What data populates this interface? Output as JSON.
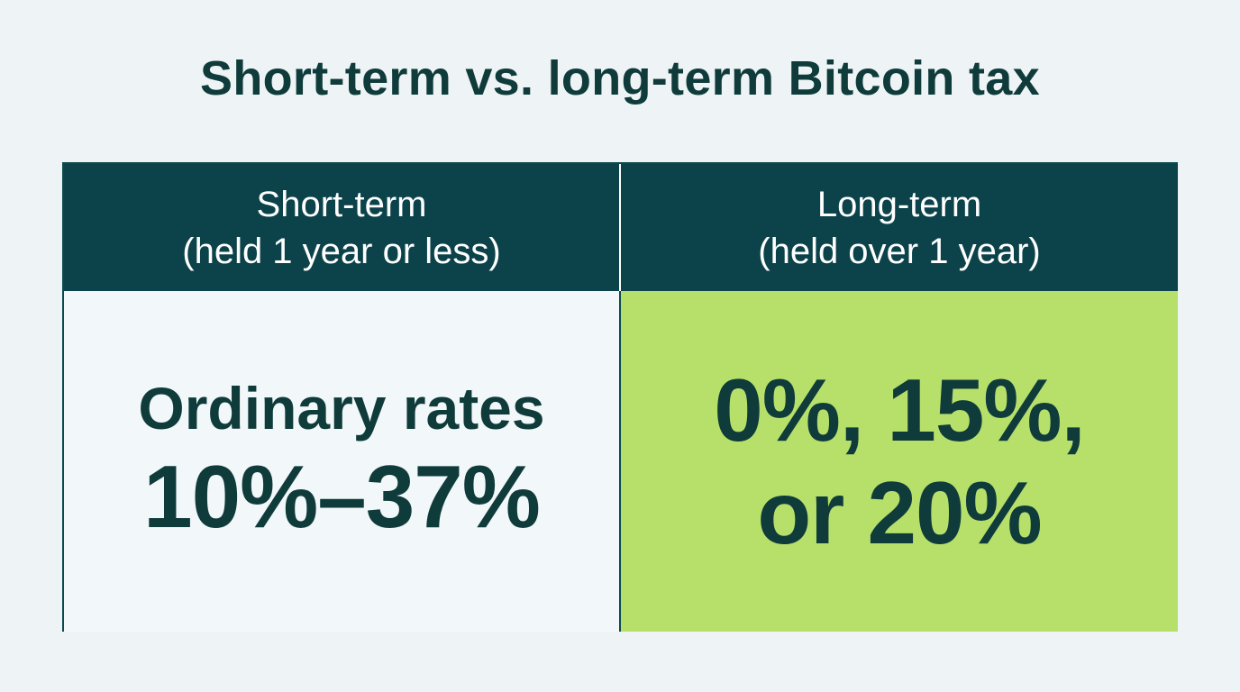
{
  "title": "Short-term vs. long-term Bitcoin tax",
  "columns": [
    {
      "header_line1": "Short-term",
      "header_line2": "(held 1 year or less)",
      "value_line1": "Ordinary rates",
      "value_line2": "10%–37%",
      "background": "#f2f7f9"
    },
    {
      "header_line1": "Long-term",
      "header_line2": "(held over 1 year)",
      "value_line1": "0%, 15%,",
      "value_line2": "or 20%",
      "background": "#b7e06a"
    }
  ],
  "colors": {
    "header_bg": "#0c434b",
    "text_dark": "#0f3b3b",
    "page_bg": "#eef3f5"
  }
}
